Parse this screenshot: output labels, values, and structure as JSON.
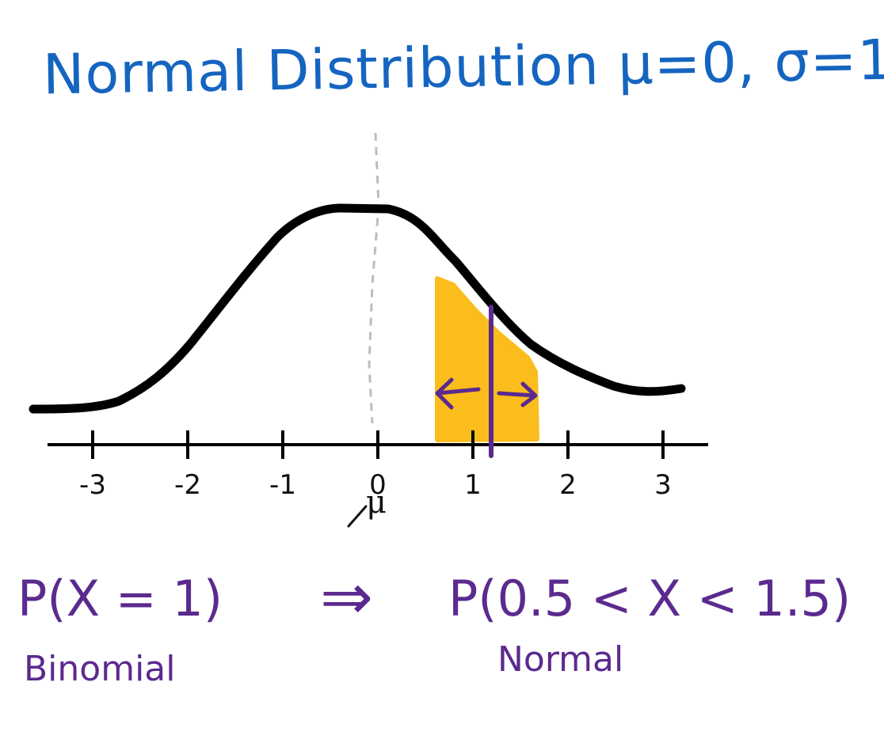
{
  "title": "Normal Distribution μ=0, σ=1",
  "axis": {
    "ticks": [
      {
        "value": -3,
        "label": "-3"
      },
      {
        "value": -2,
        "label": "-2"
      },
      {
        "value": -1,
        "label": "-1"
      },
      {
        "value": 0,
        "label": "0"
      },
      {
        "value": 1,
        "label": "1"
      },
      {
        "value": 2,
        "label": "2"
      },
      {
        "value": 3,
        "label": "3"
      }
    ],
    "mean_label": "μ"
  },
  "left_expression": "P(X = 1)",
  "left_caption": "Binomial",
  "arrow": "⇒",
  "right_expression": "P(0.5 < X < 1.5)",
  "right_caption": "Normal",
  "colors": {
    "title": "#1565c0",
    "curve": "#000000",
    "shaded_region": "#fbbd1c",
    "annotation": "#5b2a8e",
    "mean_line": "#bdbdbd"
  }
}
